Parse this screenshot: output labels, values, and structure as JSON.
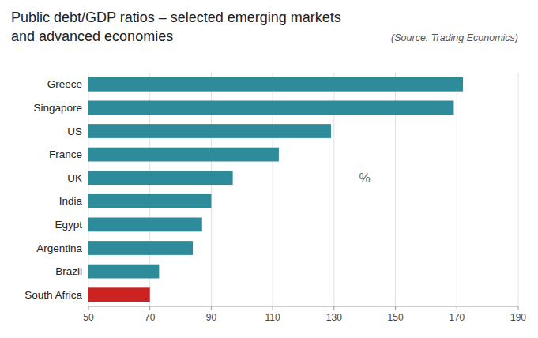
{
  "chart_data": {
    "type": "bar",
    "orientation": "horizontal",
    "title": "Public debt/GDP ratios – selected emerging markets",
    "subtitle": "and advanced economies",
    "annotations": [
      {
        "text": "(Source: Trading Economics)"
      },
      {
        "text": "%",
        "x": 140,
        "category": "UK"
      }
    ],
    "categories": [
      "Greece",
      "Singapore",
      "US",
      "France",
      "UK",
      "India",
      "Egypt",
      "Argentina",
      "Brazil",
      "South Africa"
    ],
    "values": [
      172,
      169,
      129,
      112,
      97,
      90,
      87,
      84,
      73,
      70
    ],
    "colors": [
      "#2e8b9a",
      "#2e8b9a",
      "#2e8b9a",
      "#2e8b9a",
      "#2e8b9a",
      "#2e8b9a",
      "#2e8b9a",
      "#2e8b9a",
      "#2e8b9a",
      "#cc2222"
    ],
    "xlim": [
      50,
      190
    ],
    "xticks": [
      50,
      70,
      90,
      110,
      130,
      150,
      170,
      190
    ],
    "grid": true
  }
}
